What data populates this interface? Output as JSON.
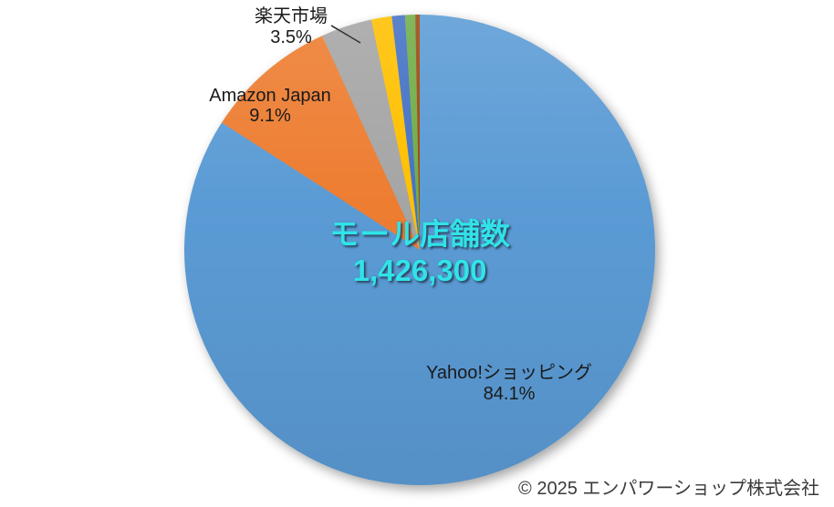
{
  "chart_data": {
    "type": "pie",
    "title": "モール店舗数",
    "total_label": "1,426,300",
    "start_angle_deg": 0,
    "direction": "clockwise",
    "slices": [
      {
        "label": "Yahoo!ショッピング",
        "pct": 84.1,
        "color": "#5B9BD5"
      },
      {
        "label": "Amazon Japan",
        "pct": 9.1,
        "color": "#ED7D31"
      },
      {
        "label": "楽天市場",
        "pct": 3.5,
        "color": "#A5A5A5"
      },
      {
        "label": "",
        "pct": 1.4,
        "color": "#FFC000"
      },
      {
        "label": "",
        "pct": 0.9,
        "color": "#4472C4"
      },
      {
        "label": "",
        "pct": 0.7,
        "color": "#70AD47"
      },
      {
        "label": "",
        "pct": 0.3,
        "color": "#9E480E"
      }
    ],
    "legend": "none",
    "labels_shown_on_chart": true
  },
  "labels": {
    "rakuten": {
      "name": "楽天市場",
      "pct": "3.5%"
    },
    "amazon": {
      "name": "Amazon Japan",
      "pct": "9.1%"
    },
    "yahoo": {
      "name": "Yahoo!ショッピング",
      "pct": "84.1%"
    },
    "center": {
      "title": "モール店舗数",
      "value": "1,426,300"
    }
  },
  "footer": {
    "copyright": "© 2025 エンパワーショップ株式会社"
  },
  "colors": {
    "center_text": "#31E3E9",
    "label_text": "#1A1A1A",
    "leader_line": "#1A1A1A"
  }
}
